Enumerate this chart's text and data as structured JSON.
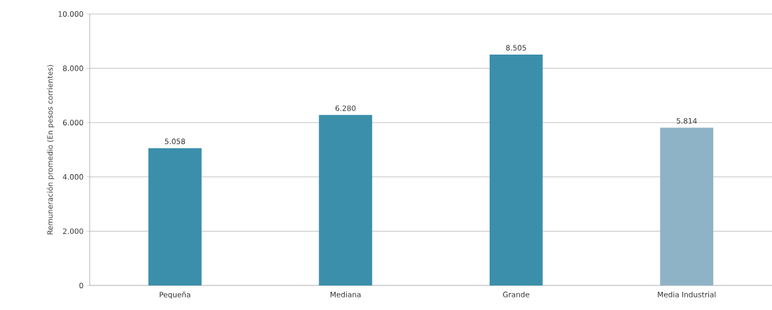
{
  "chart_data": {
    "type": "bar",
    "ylabel": "Remuneración promedio (En pesos corrientes)",
    "categories": [
      "Pequeña",
      "Mediana",
      "Grande",
      "Media Industrial"
    ],
    "values": [
      5058,
      6280,
      8505,
      5814
    ],
    "colors": [
      "#3b8fab",
      "#3b8fab",
      "#3b8fab",
      "#8fb3c6"
    ],
    "value_labels": [
      "5.058",
      "6.280",
      "8.505",
      "5.814"
    ],
    "ylim": [
      0,
      10000
    ],
    "yticks": [
      {
        "value": 0,
        "label": "0"
      },
      {
        "value": 2000,
        "label": "2.000"
      },
      {
        "value": 4000,
        "label": "4.000"
      },
      {
        "value": 6000,
        "label": "6.000"
      },
      {
        "value": 8000,
        "label": "8.000"
      },
      {
        "value": 10000,
        "label": "10.000"
      }
    ],
    "grid": "y"
  }
}
